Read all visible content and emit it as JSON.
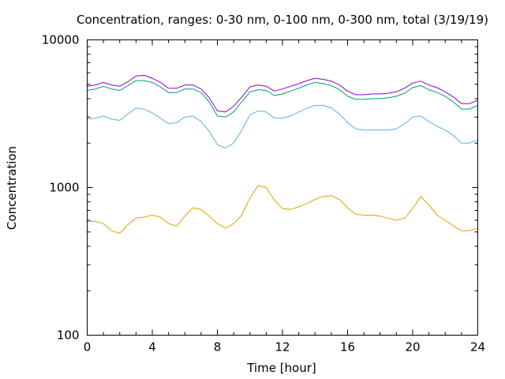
{
  "chart_data": {
    "type": "line",
    "title": "Concentration, ranges: 0-30 nm, 0-100 nm, 0-300 nm, total (3/19/19)",
    "xlabel": "Time [hour]",
    "ylabel": "Concentration",
    "xlim": [
      0,
      24
    ],
    "ylim": [
      100,
      10000
    ],
    "yscale": "log",
    "x_ticks": [
      "0",
      "4",
      "8",
      "12",
      "16",
      "20",
      "24"
    ],
    "y_ticks": [
      "100",
      "1000",
      "10000"
    ],
    "grid": false,
    "legend": "none",
    "series": [
      {
        "color": "#9400d3",
        "x": [
          0,
          0.5,
          1,
          1.5,
          2,
          2.5,
          3,
          3.5,
          4,
          4.5,
          5,
          5.5,
          6,
          6.5,
          7,
          7.5,
          8,
          8.5,
          9,
          9.5,
          10,
          10.5,
          11,
          11.5,
          12,
          12.5,
          13,
          13.5,
          14,
          14.5,
          15,
          15.5,
          16,
          16.5,
          17,
          17.5,
          18,
          18.5,
          19,
          19.5,
          20,
          20.5,
          21,
          21.5,
          22,
          22.5,
          23,
          23.5,
          24
        ],
        "values": [
          4850,
          4950,
          5150,
          4950,
          4850,
          5200,
          5700,
          5750,
          5500,
          5150,
          4700,
          4700,
          4950,
          4950,
          4650,
          4050,
          3300,
          3250,
          3550,
          4100,
          4800,
          4950,
          4850,
          4500,
          4650,
          4850,
          5050,
          5300,
          5500,
          5400,
          5250,
          4950,
          4500,
          4250,
          4250,
          4300,
          4300,
          4350,
          4450,
          4700,
          5100,
          5250,
          4950,
          4750,
          4450,
          4100,
          3700,
          3700,
          3900
        ]
      },
      {
        "color": "#009e73",
        "x": [
          0,
          0.5,
          1,
          1.5,
          2,
          2.5,
          3,
          3.5,
          4,
          4.5,
          5,
          5.5,
          6,
          6.5,
          7,
          7.5,
          8,
          8.5,
          9,
          9.5,
          10,
          10.5,
          11,
          11.5,
          12,
          12.5,
          13,
          13.5,
          14,
          14.5,
          15,
          15.5,
          16,
          16.5,
          17,
          17.5,
          18,
          18.5,
          19,
          19.5,
          20,
          20.5,
          21,
          21.5,
          22,
          22.5,
          23,
          23.5,
          24
        ],
        "values": [
          4550,
          4650,
          4850,
          4650,
          4550,
          4900,
          5300,
          5300,
          5150,
          4800,
          4400,
          4400,
          4650,
          4650,
          4400,
          3800,
          3050,
          3000,
          3250,
          3800,
          4450,
          4600,
          4550,
          4200,
          4300,
          4500,
          4700,
          4950,
          5150,
          5050,
          4900,
          4600,
          4150,
          3950,
          3950,
          4000,
          4000,
          4050,
          4150,
          4350,
          4750,
          4900,
          4600,
          4400,
          4150,
          3800,
          3400,
          3400,
          3600
        ]
      },
      {
        "color": "#56b4e9",
        "x": [
          0,
          0.5,
          1,
          1.5,
          2,
          2.5,
          3,
          3.5,
          4,
          4.5,
          5,
          5.5,
          6,
          6.5,
          7,
          7.5,
          8,
          8.5,
          9,
          9.5,
          10,
          10.5,
          11,
          11.5,
          12,
          12.5,
          13,
          13.5,
          14,
          14.5,
          15,
          15.5,
          16,
          16.5,
          17,
          17.5,
          18,
          18.5,
          19,
          19.5,
          20,
          20.5,
          21,
          21.5,
          22,
          22.5,
          23,
          23.5,
          24
        ],
        "values": [
          2900,
          2950,
          3050,
          2900,
          2850,
          3150,
          3450,
          3400,
          3200,
          2950,
          2700,
          2750,
          3000,
          3050,
          2800,
          2400,
          1950,
          1850,
          2000,
          2450,
          3100,
          3300,
          3250,
          2950,
          2950,
          3050,
          3250,
          3450,
          3600,
          3600,
          3450,
          3150,
          2750,
          2500,
          2450,
          2450,
          2450,
          2450,
          2500,
          2700,
          3000,
          3050,
          2800,
          2600,
          2450,
          2250,
          2000,
          2000,
          2100
        ]
      },
      {
        "color": "#e69f00",
        "x": [
          0,
          0.5,
          1,
          1.5,
          2,
          2.5,
          3,
          3.5,
          4,
          4.5,
          5,
          5.5,
          6,
          6.5,
          7,
          7.5,
          8,
          8.5,
          9,
          9.5,
          10,
          10.5,
          11,
          11.5,
          12,
          12.5,
          13,
          13.5,
          14,
          14.5,
          15,
          15.5,
          16,
          16.5,
          17,
          17.5,
          18,
          18.5,
          19,
          19.5,
          20,
          20.5,
          21,
          21.5,
          22,
          22.5,
          23,
          23.5,
          24
        ],
        "values": [
          590,
          590,
          570,
          510,
          490,
          560,
          620,
          630,
          650,
          630,
          570,
          550,
          640,
          730,
          710,
          640,
          570,
          530,
          570,
          650,
          850,
          1030,
          1000,
          820,
          720,
          710,
          740,
          780,
          830,
          870,
          880,
          830,
          730,
          660,
          650,
          650,
          640,
          620,
          600,
          620,
          720,
          870,
          760,
          650,
          600,
          550,
          510,
          510,
          530
        ]
      }
    ]
  }
}
